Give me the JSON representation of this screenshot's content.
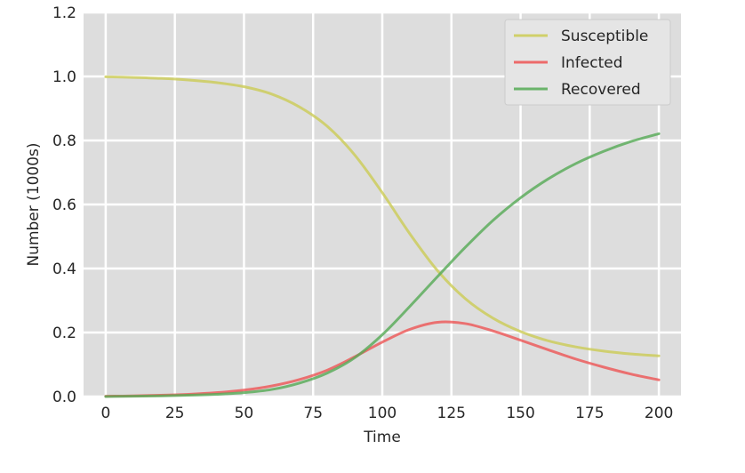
{
  "chart_data": {
    "type": "line",
    "title": "",
    "xlabel": "Time",
    "ylabel": "Number (1000s)",
    "xlim": [
      -8,
      208
    ],
    "ylim": [
      0,
      1.2
    ],
    "xticks": [
      0,
      25,
      50,
      75,
      100,
      125,
      150,
      175,
      200
    ],
    "yticks": [
      0.0,
      0.2,
      0.4,
      0.6,
      0.8,
      1.0,
      1.2
    ],
    "xtick_labels": [
      "0",
      "25",
      "50",
      "75",
      "100",
      "125",
      "150",
      "175",
      "200"
    ],
    "ytick_labels": [
      "0.0",
      "0.2",
      "0.4",
      "0.6",
      "0.8",
      "1.0",
      "1.2"
    ],
    "grid": true,
    "legend_position": "top-right",
    "background": "#dddddd",
    "x": [
      0,
      10,
      20,
      30,
      40,
      50,
      60,
      70,
      80,
      90,
      100,
      110,
      120,
      130,
      140,
      150,
      160,
      170,
      180,
      190,
      200
    ],
    "series": [
      {
        "name": "Susceptible",
        "color": "#cccc55",
        "values": [
          0.999,
          0.997,
          0.994,
          0.989,
          0.981,
          0.968,
          0.945,
          0.905,
          0.845,
          0.755,
          0.637,
          0.508,
          0.393,
          0.306,
          0.245,
          0.203,
          0.174,
          0.155,
          0.142,
          0.133,
          0.127
        ]
      },
      {
        "name": "Infected",
        "color": "#ee5555",
        "values": [
          0.001,
          0.002,
          0.004,
          0.007,
          0.012,
          0.02,
          0.033,
          0.053,
          0.082,
          0.124,
          0.17,
          0.21,
          0.232,
          0.228,
          0.205,
          0.176,
          0.146,
          0.117,
          0.092,
          0.07,
          0.052
        ]
      },
      {
        "name": "Recovered",
        "color": "#55aa55",
        "values": [
          0.0,
          0.001,
          0.002,
          0.004,
          0.007,
          0.012,
          0.022,
          0.042,
          0.073,
          0.121,
          0.193,
          0.282,
          0.375,
          0.466,
          0.55,
          0.621,
          0.68,
          0.728,
          0.766,
          0.797,
          0.821
        ]
      }
    ]
  }
}
